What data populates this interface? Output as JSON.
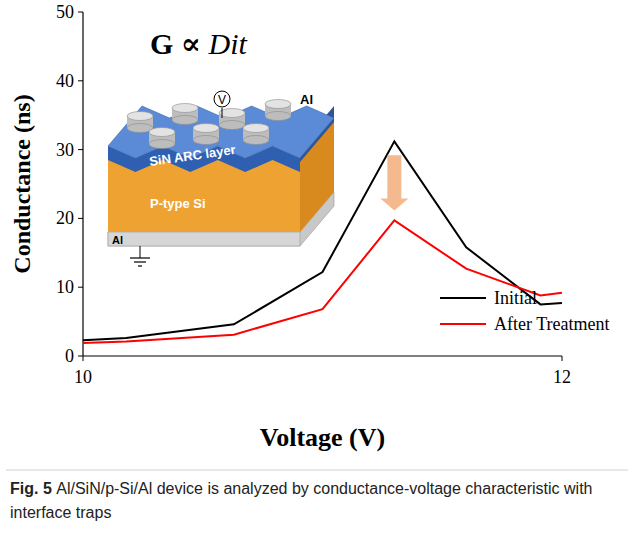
{
  "chart_data": {
    "type": "line",
    "x_label": "Voltage (V)",
    "y_label": "Conductance (ns)",
    "xlim": [
      10,
      12
    ],
    "xticks": [
      10,
      12
    ],
    "ylim": [
      0,
      50
    ],
    "yticks": [
      0,
      10,
      20,
      30,
      40,
      50
    ],
    "grid": false,
    "legend": "lower right",
    "series": [
      {
        "name": "Initial",
        "color": "#000000",
        "line_style": "solid",
        "x": [
          10,
          10.18,
          10.63,
          11.0,
          11.3,
          11.6,
          11.91,
          12.0
        ],
        "values": [
          2.3,
          2.6,
          4.6,
          12.2,
          31.2,
          15.8,
          7.5,
          7.7
        ]
      },
      {
        "name": "After Treatment",
        "color": "#ff0000",
        "line_style": "solid",
        "x": [
          10,
          10.18,
          10.63,
          11.0,
          11.3,
          11.6,
          11.91,
          12.0
        ],
        "values": [
          1.9,
          2.1,
          3.1,
          6.8,
          19.7,
          12.7,
          8.8,
          9.2
        ]
      }
    ],
    "annotations": [
      "G ∝ Dit",
      "SiN ARC layer",
      "P-type Si",
      "Al",
      "Al",
      "V"
    ],
    "caption": {
      "label": "Fig. 5",
      "text": "Al/SiN/p-Si/Al device is analyzed by conductance-voltage characteristic with interface traps"
    }
  }
}
